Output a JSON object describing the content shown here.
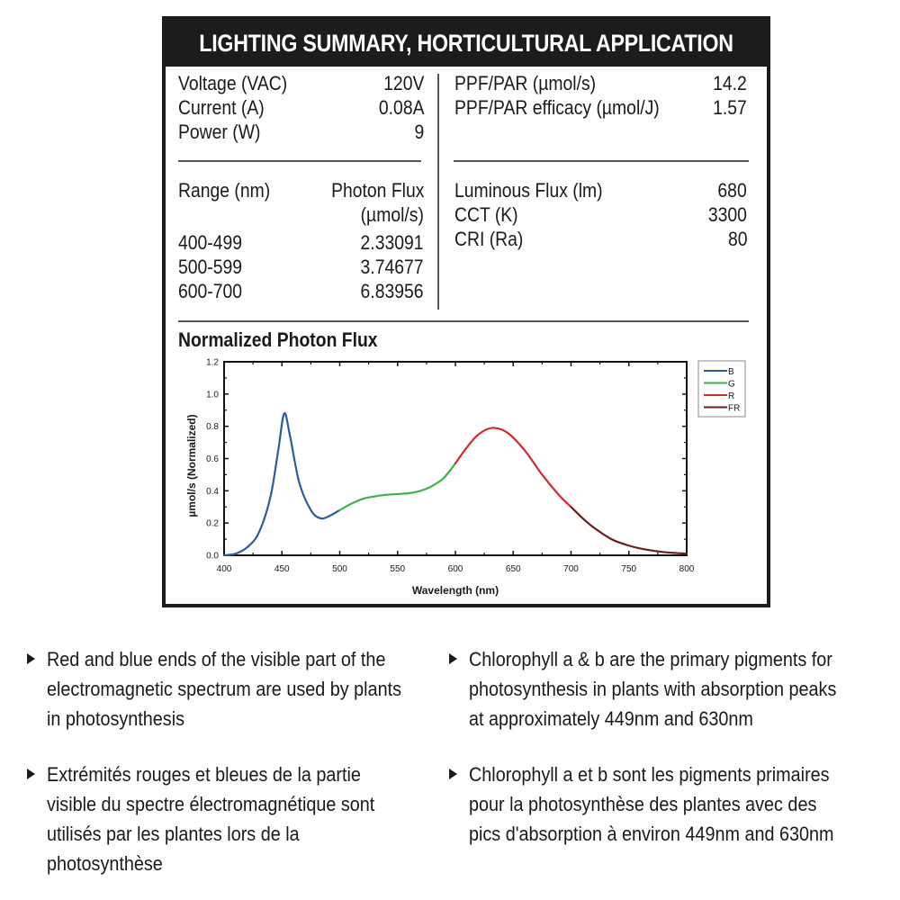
{
  "header": {
    "title": "LIGHTING SUMMARY, HORTICULTURAL APPLICATION"
  },
  "electrical": [
    {
      "label": "Voltage (VAC)",
      "value": "120V"
    },
    {
      "label": "Current (A)",
      "value": "0.08A"
    },
    {
      "label": "Power (W)",
      "value": "9"
    }
  ],
  "ppf": [
    {
      "label": "PPF/PAR (µmol/s)",
      "value": "14.2"
    },
    {
      "label": "PPF/PAR efficacy (µmol/J)",
      "value": "1.57"
    }
  ],
  "range_table": {
    "col1_header": "Range (nm)",
    "col2_header_line1": "Photon Flux",
    "col2_header_line2": "(µmol/s)",
    "rows": [
      {
        "range": "400-499",
        "flux": "2.33091"
      },
      {
        "range": "500-599",
        "flux": "3.74677"
      },
      {
        "range": "600-700",
        "flux": "6.83956"
      }
    ]
  },
  "photometric": [
    {
      "label": "Luminous Flux (lm)",
      "value": "680"
    },
    {
      "label": "CCT (K)",
      "value": "3300"
    },
    {
      "label": "CRI (Ra)",
      "value": "80"
    }
  ],
  "chart_section_title": "Normalized Photon Flux",
  "chart_data": {
    "type": "line",
    "title": "Normalized Photon Flux",
    "xlabel": "Wavelength (nm)",
    "ylabel": "µmol/s (Normalized)",
    "xlim": [
      400,
      800
    ],
    "ylim": [
      0,
      1.2
    ],
    "xticks": [
      400,
      450,
      500,
      550,
      600,
      650,
      700,
      750,
      800
    ],
    "yticks": [
      "0.0",
      "0.2",
      "0.4",
      "0.6",
      "0.8",
      "1.0",
      "1.2"
    ],
    "grid": false,
    "legend_position": "outside-top-right",
    "series": [
      {
        "name": "B",
        "color": "#2b5d9c",
        "x": [
          400,
          410,
          420,
          430,
          440,
          447,
          452,
          457,
          465,
          475,
          483,
          490,
          500
        ],
        "values": [
          0.0,
          0.01,
          0.05,
          0.14,
          0.36,
          0.66,
          0.88,
          0.74,
          0.45,
          0.28,
          0.23,
          0.24,
          0.28
        ]
      },
      {
        "name": "G",
        "color": "#3cb34a",
        "x": [
          500,
          510,
          520,
          530,
          540,
          550,
          560,
          570,
          580,
          590,
          600
        ],
        "values": [
          0.28,
          0.32,
          0.35,
          0.365,
          0.375,
          0.38,
          0.385,
          0.4,
          0.43,
          0.48,
          0.57
        ]
      },
      {
        "name": "R",
        "color": "#d42a2a",
        "x": [
          600,
          610,
          620,
          632,
          645,
          660,
          675,
          690,
          700
        ],
        "values": [
          0.57,
          0.67,
          0.75,
          0.79,
          0.76,
          0.65,
          0.5,
          0.37,
          0.3
        ]
      },
      {
        "name": "FR",
        "color": "#6b1c1c",
        "x": [
          700,
          710,
          720,
          735,
          750,
          765,
          780,
          800
        ],
        "values": [
          0.3,
          0.23,
          0.17,
          0.1,
          0.06,
          0.035,
          0.02,
          0.01
        ]
      }
    ]
  },
  "bullets": [
    {
      "lines": [
        "Red and blue ends of the visible part of the",
        "electromagnetic spectrum are used by plants",
        "in photosynthesis"
      ]
    },
    {
      "lines": [
        "Chlorophyll a & b are the primary pigments for",
        "photosynthesis in plants with  absorption peaks",
        "at approximately 449nm and 630nm"
      ]
    },
    {
      "lines": [
        "Extrémités rouges et bleues de la partie",
        "visible  du spectre électromagnétique sont",
        "utilisés par les plantes lors de la",
        "photosynthèse"
      ]
    },
    {
      "lines": [
        "Chlorophyll a et b sont les pigments primaires",
        "pour la photosynthèse des plantes avec des",
        "pics  d'absorption à environ 449nm and 630nm"
      ]
    }
  ]
}
